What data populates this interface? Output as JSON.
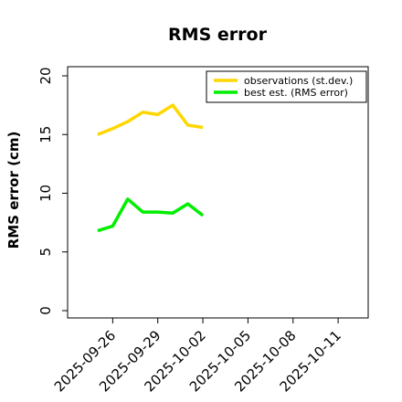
{
  "chart_data": {
    "type": "line",
    "title": "RMS error",
    "ylabel": "RMS error (cm)",
    "xlabel": "",
    "ylim": [
      0,
      21
    ],
    "xlim": [
      "2025-09-23",
      "2025-10-13"
    ],
    "y_ticks": [
      0,
      5,
      10,
      15,
      20
    ],
    "x_ticks": [
      "2025-09-26",
      "2025-09-29",
      "2025-10-02",
      "2025-10-05",
      "2025-10-08",
      "2025-10-11"
    ],
    "highlight_tick": "2025-10-02",
    "highlight_color": "#228B22",
    "grid": false,
    "legend_position": "top-right",
    "x": [
      "2025-09-25",
      "2025-09-26",
      "2025-09-27",
      "2025-09-28",
      "2025-09-29",
      "2025-09-30",
      "2025-10-01",
      "2025-10-02"
    ],
    "series": [
      {
        "name": "observations (st.dev.)",
        "color": "#FFD700",
        "values": [
          15.0,
          15.5,
          16.1,
          16.9,
          16.7,
          17.5,
          15.8,
          15.6
        ]
      },
      {
        "name": "best est. (RMS error)",
        "color": "#00EE00",
        "values": [
          6.8,
          7.2,
          9.5,
          8.4,
          8.4,
          8.3,
          9.1,
          8.1
        ]
      }
    ]
  }
}
